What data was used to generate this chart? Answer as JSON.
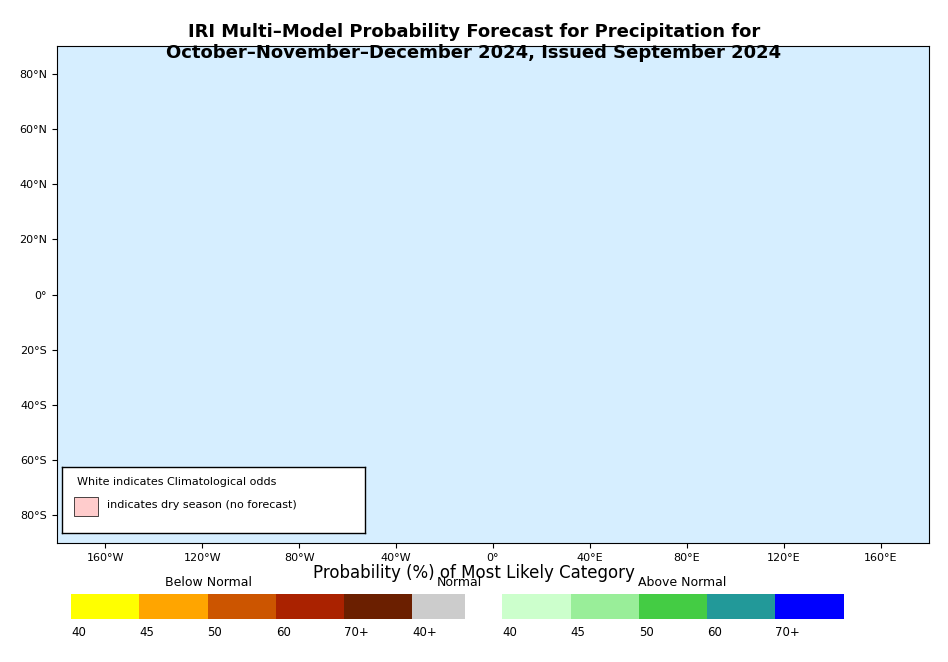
{
  "title_line1": "IRI Multi–Model Probability Forecast for Precipitation for",
  "title_line2": "October–November–December 2024, Issued September 2024",
  "xlabel": "Probability (%) of Most Likely Category",
  "map_bg_color": "#d6eeff",
  "land_color": "#f5f5f5",
  "below_normal_colors": [
    "#ffff00",
    "#ffa500",
    "#cc5500",
    "#aa2200",
    "#6b1f00"
  ],
  "below_normal_labels": [
    "40",
    "45",
    "50",
    "60",
    "70+"
  ],
  "normal_colors": [
    "#cccccc"
  ],
  "normal_labels": [
    "40+"
  ],
  "above_normal_colors": [
    "#ccffcc",
    "#99ee99",
    "#44cc44",
    "#229999",
    "#0000ff"
  ],
  "above_normal_labels": [
    "40",
    "45",
    "50",
    "60",
    "70+"
  ],
  "legend_note_line1": "White indicates Climatological odds",
  "legend_note_line2": "□  indicates dry season (no forecast)",
  "dry_season_color": "#ffcccc",
  "xtick_labels": [
    "160°W",
    "120°W",
    "80°W",
    "40°W",
    "0°",
    "40°E",
    "80°E",
    "120°E",
    "160°E"
  ],
  "ytick_labels": [
    "80°N",
    "60°N",
    "40°N",
    "20°N",
    "0°",
    "20°S",
    "40°S",
    "60°S",
    "80°S"
  ]
}
